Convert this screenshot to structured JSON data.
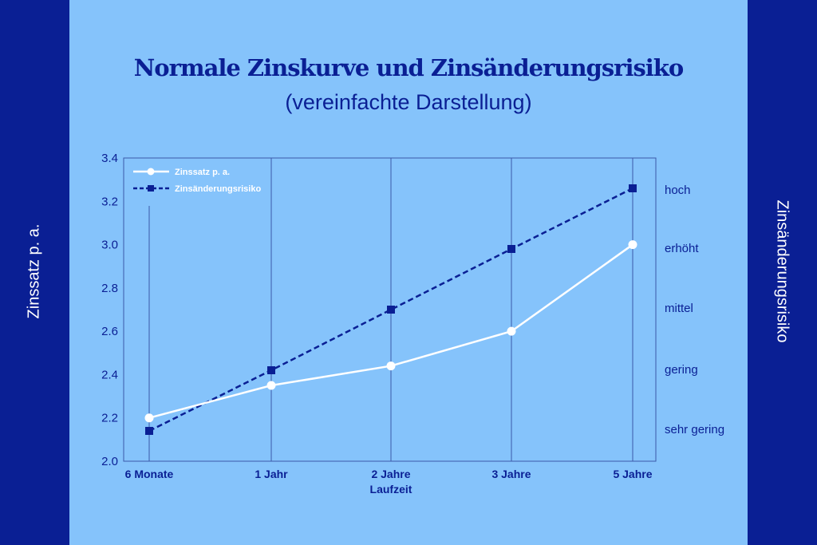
{
  "chart_data": {
    "type": "line",
    "title": "Normale Zinskurve und Zinsänderungsrisiko",
    "subtitle": "(vereinfachte Darstellung)",
    "xlabel": "Laufzeit",
    "ylabel": "Zinssatz p. a.",
    "ylabel_right": "Zinsänderungsrisiko",
    "categories": [
      "6 Monate",
      "1 Jahr",
      "2 Jahre",
      "3 Jahre",
      "5 Jahre"
    ],
    "ylim": [
      2.0,
      3.4
    ],
    "yticks": [
      "2.0",
      "2.2",
      "2.4",
      "2.6",
      "2.8",
      "3.0",
      "3.2",
      "3.4"
    ],
    "right_ticks": [
      "sehr gering",
      "gering",
      "mittel",
      "erhöht",
      "hoch"
    ],
    "grid": "vertical",
    "legend_position": "top-left",
    "series": [
      {
        "name": "Zinssatz p. a.",
        "values": [
          2.2,
          2.35,
          2.44,
          2.6,
          3.0
        ],
        "color": "#ffffff",
        "style": "solid",
        "marker": "circle"
      },
      {
        "name": "Zinsänderungsrisiko",
        "values": [
          2.14,
          2.42,
          2.7,
          2.98,
          3.26
        ],
        "categories_right": [
          "sehr gering",
          "gering",
          "mittel",
          "erhöht",
          "hoch"
        ],
        "color": "#0a1f94",
        "style": "dashed",
        "marker": "square"
      }
    ]
  },
  "colors": {
    "background": "#85c3fb",
    "sidebar": "#0a1f94",
    "accent": "#0a1f94",
    "line_white": "#ffffff"
  }
}
